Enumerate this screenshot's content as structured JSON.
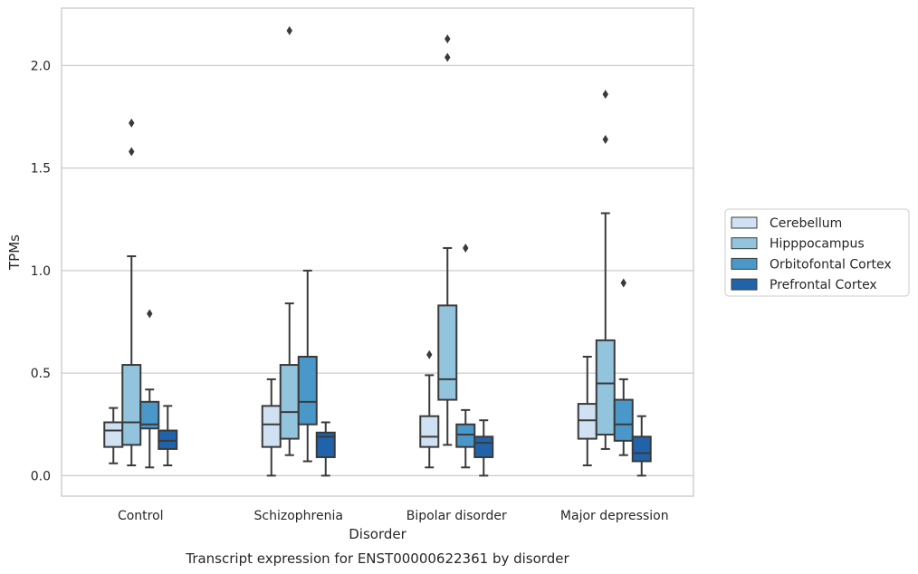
{
  "chart_data": {
    "type": "box",
    "caption": "Transcript expression for ENST00000622361 by disorder",
    "xlabel": "Disorder",
    "ylabel": "TPMs",
    "ylim": [
      -0.1,
      2.28
    ],
    "yticks": [
      "0.0",
      "0.5",
      "1.0",
      "1.5",
      "2.0"
    ],
    "ytick_values": [
      0.0,
      0.5,
      1.0,
      1.5,
      2.0
    ],
    "categories": [
      "Control",
      "Schizophrenia",
      "Bipolar disorder",
      "Major depression"
    ],
    "grid": "horizontal",
    "legend_position": "right",
    "series": [
      {
        "name": "Cerebellum",
        "color": "#cfe1f2",
        "boxes": [
          {
            "whisker_low": 0.06,
            "q1": 0.14,
            "median": 0.22,
            "q3": 0.26,
            "whisker_high": 0.33,
            "outliers": []
          },
          {
            "whisker_low": 0.0,
            "q1": 0.14,
            "median": 0.25,
            "q3": 0.34,
            "whisker_high": 0.47,
            "outliers": []
          },
          {
            "whisker_low": 0.04,
            "q1": 0.14,
            "median": 0.19,
            "q3": 0.29,
            "whisker_high": 0.49,
            "outliers": [
              0.59
            ]
          },
          {
            "whisker_low": 0.05,
            "q1": 0.18,
            "median": 0.27,
            "q3": 0.35,
            "whisker_high": 0.58,
            "outliers": []
          }
        ]
      },
      {
        "name": "Hipppocampus",
        "color": "#93c4de",
        "boxes": [
          {
            "whisker_low": 0.05,
            "q1": 0.15,
            "median": 0.26,
            "q3": 0.54,
            "whisker_high": 1.07,
            "outliers": [
              1.58,
              1.72
            ]
          },
          {
            "whisker_low": 0.1,
            "q1": 0.18,
            "median": 0.31,
            "q3": 0.54,
            "whisker_high": 0.84,
            "outliers": [
              2.17
            ]
          },
          {
            "whisker_low": 0.15,
            "q1": 0.37,
            "median": 0.47,
            "q3": 0.83,
            "whisker_high": 1.11,
            "outliers": [
              2.04,
              2.13
            ]
          },
          {
            "whisker_low": 0.13,
            "q1": 0.2,
            "median": 0.45,
            "q3": 0.66,
            "whisker_high": 1.28,
            "outliers": [
              1.64,
              1.86
            ]
          }
        ]
      },
      {
        "name": "Orbitofontal Cortex",
        "color": "#4a98c9",
        "boxes": [
          {
            "whisker_low": 0.04,
            "q1": 0.23,
            "median": 0.25,
            "q3": 0.36,
            "whisker_high": 0.42,
            "outliers": [
              0.79
            ]
          },
          {
            "whisker_low": 0.07,
            "q1": 0.25,
            "median": 0.36,
            "q3": 0.58,
            "whisker_high": 1.0,
            "outliers": []
          },
          {
            "whisker_low": 0.04,
            "q1": 0.14,
            "median": 0.2,
            "q3": 0.25,
            "whisker_high": 0.32,
            "outliers": [
              1.11
            ]
          },
          {
            "whisker_low": 0.1,
            "q1": 0.17,
            "median": 0.25,
            "q3": 0.37,
            "whisker_high": 0.47,
            "outliers": [
              0.94
            ]
          }
        ]
      },
      {
        "name": "Prefrontal Cortex",
        "color": "#2163aa",
        "boxes": [
          {
            "whisker_low": 0.05,
            "q1": 0.13,
            "median": 0.17,
            "q3": 0.22,
            "whisker_high": 0.34,
            "outliers": []
          },
          {
            "whisker_low": 0.0,
            "q1": 0.09,
            "median": 0.19,
            "q3": 0.21,
            "whisker_high": 0.26,
            "outliers": []
          },
          {
            "whisker_low": 0.0,
            "q1": 0.09,
            "median": 0.16,
            "q3": 0.19,
            "whisker_high": 0.27,
            "outliers": []
          },
          {
            "whisker_low": 0.0,
            "q1": 0.07,
            "median": 0.11,
            "q3": 0.19,
            "whisker_high": 0.29,
            "outliers": []
          }
        ]
      }
    ]
  }
}
